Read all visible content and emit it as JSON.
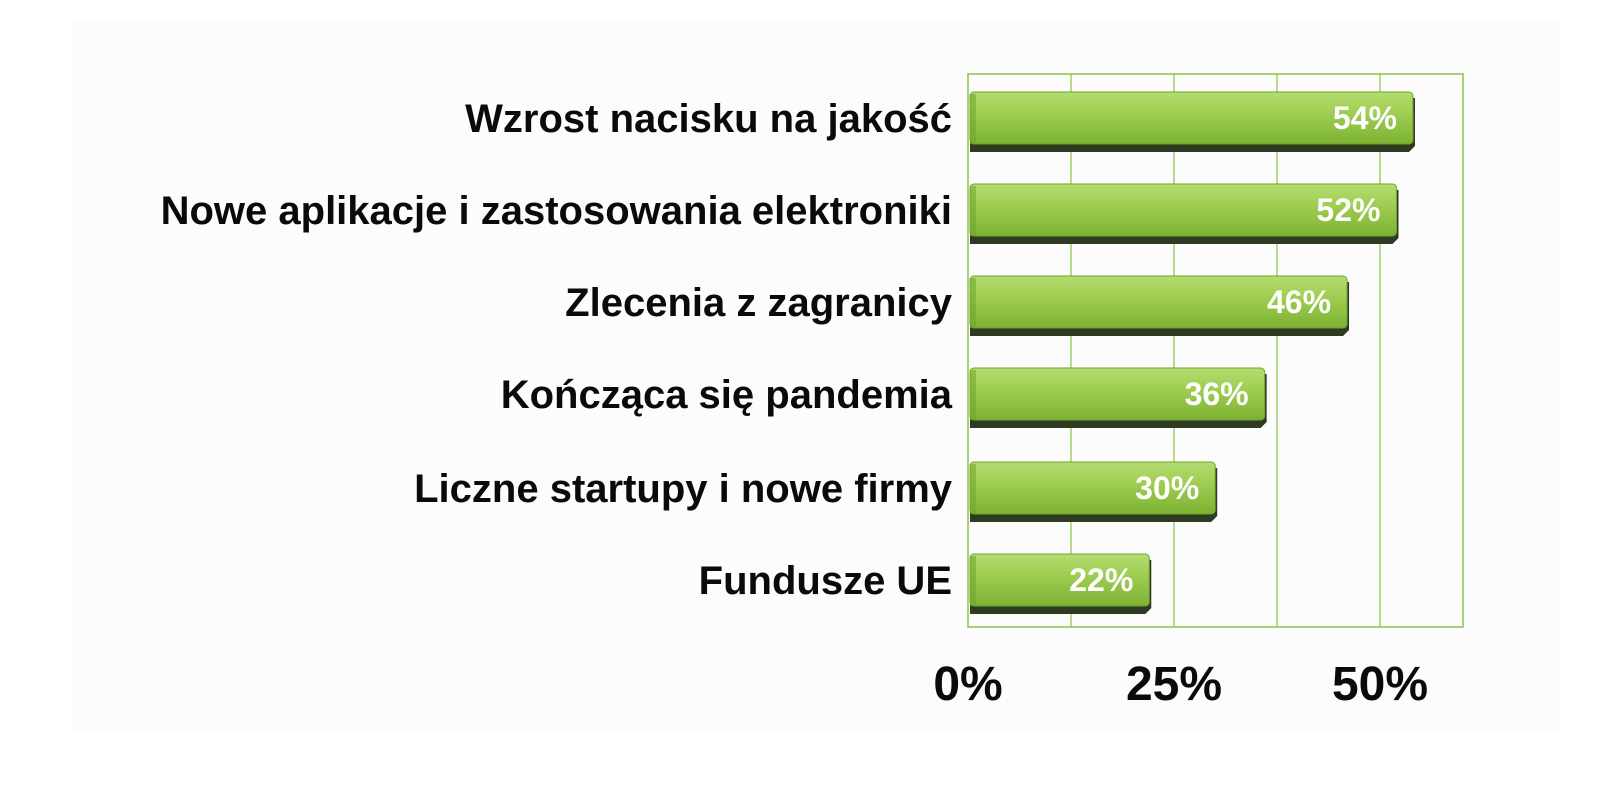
{
  "chart_data": {
    "type": "bar",
    "orientation": "horizontal",
    "categories": [
      "Wzrost nacisku na jakość",
      "Nowe aplikacje i zastosowania elektroniki",
      "Zlecenia z zagranicy",
      "Kończąca się pandemia",
      "Liczne startupy i nowe firmy",
      "Fundusze UE"
    ],
    "values": [
      54,
      52,
      46,
      36,
      30,
      22
    ],
    "value_labels": [
      "54%",
      "52%",
      "46%",
      "36%",
      "30%",
      "22%"
    ],
    "x_ticks": [
      0,
      25,
      50
    ],
    "x_tick_labels": [
      "0%",
      "25%",
      "50%"
    ],
    "x_minor_gridlines": [
      12.5,
      37.5
    ],
    "xlim": [
      0,
      60
    ],
    "grid": true,
    "colors": {
      "bar": "#8dc63f",
      "bar_light": "#a7d45f",
      "bar_dark": "#6fa42a",
      "bar_shadow": "#2f3a22",
      "grid": "#8cc34a",
      "plot_border": "#8cc34a"
    }
  }
}
